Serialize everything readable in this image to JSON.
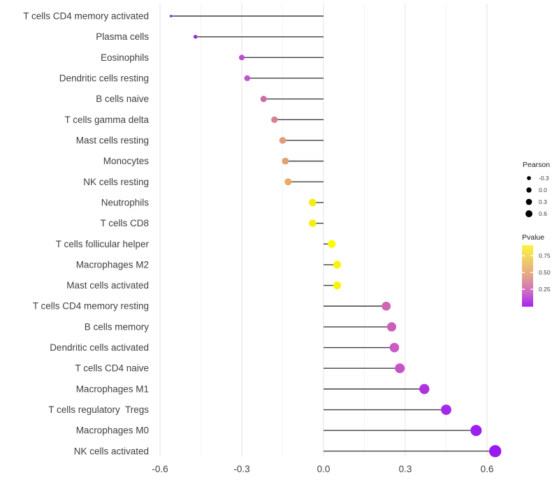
{
  "chart_data": {
    "type": "scatter",
    "variant": "horizontal-lollipop",
    "title": "",
    "xlabel": "",
    "ylabel": "",
    "x_tick_labels": [
      "-0.6",
      "-0.3",
      "0.0",
      "0.3",
      "0.6"
    ],
    "x_tick_values": [
      -0.6,
      -0.3,
      0.0,
      0.3,
      0.6
    ],
    "xlim": [
      -0.63,
      0.7
    ],
    "grid": "vertical-major-and-minor",
    "legend_position": "right",
    "categories": [
      "T cells CD4 memory activated",
      "Plasma cells",
      "Eosinophils",
      "Dendritic cells resting",
      "B cells naive",
      "T cells gamma delta",
      "Mast cells resting",
      "Monocytes",
      "NK cells resting",
      "Neutrophils",
      "T cells CD8",
      "T cells follicular helper",
      "Macrophages M2",
      "Mast cells activated",
      "T cells CD4 memory resting",
      "B cells memory",
      "Dendritic cells activated",
      "T cells CD4 naive",
      "Macrophages M1",
      "T cells regulatory  Tregs",
      "Macrophages M0",
      "NK cells activated"
    ],
    "series": [
      {
        "name": "Pearson",
        "values": [
          -0.56,
          -0.47,
          -0.3,
          -0.28,
          -0.22,
          -0.18,
          -0.15,
          -0.14,
          -0.13,
          -0.04,
          -0.04,
          0.03,
          0.05,
          0.05,
          0.23,
          0.25,
          0.26,
          0.28,
          0.37,
          0.45,
          0.56,
          0.63
        ]
      }
    ],
    "point_colors": [
      "#8926E3",
      "#9530DC",
      "#BB4CCF",
      "#C156C9",
      "#CC6BA4",
      "#D78193",
      "#E29A7A",
      "#E4A072",
      "#E8AB68",
      "#F4EC0A",
      "#F5EE08",
      "#FDFB01",
      "#F8F403",
      "#F8F403",
      "#CE68B0",
      "#CB60BA",
      "#C95BC2",
      "#C654C7",
      "#AC33DF",
      "#A329E8",
      "#9C20EF",
      "#9719F3"
    ],
    "point_radii": [
      1.8,
      2.8,
      4.0,
      4.2,
      4.5,
      4.7,
      4.8,
      4.9,
      5.0,
      5.3,
      5.3,
      5.6,
      5.6,
      5.6,
      6.4,
      6.6,
      6.8,
      7.0,
      7.2,
      7.4,
      8.0,
      8.7
    ],
    "stem_color": "#3F3F3F",
    "grid_major_color": "#E3E3E3",
    "grid_minor_color": "#F1F1F1",
    "legend": {
      "size_legend": {
        "title": "Pearson",
        "labels": [
          "-0.3",
          "0.0",
          "0.3",
          "0.6"
        ],
        "dot_color": "#000000",
        "dot_radii": [
          2.9,
          3.7,
          4.4,
          5.0
        ]
      },
      "color_legend": {
        "title": "Pvalue",
        "labels": [
          "0.75",
          "0.50",
          "0.25"
        ],
        "gradient_top_to_bottom": [
          "#FBF53B",
          "#F0CC68",
          "#E3A487",
          "#CC6EC4",
          "#A824F0"
        ]
      }
    }
  }
}
